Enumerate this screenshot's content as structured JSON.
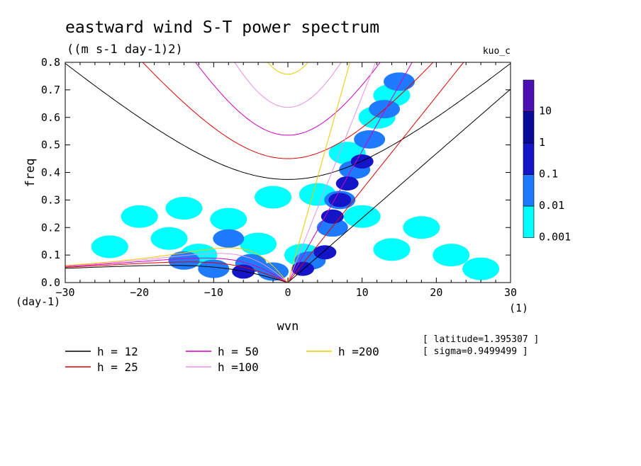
{
  "chart_data": {
    "type": "contour",
    "title": "eastward wind S-T power spectrum",
    "subtitle": "((m s-1 day-1)2)",
    "model_label": "kuo_c",
    "xlabel": "wvn",
    "ylabel": "freq",
    "x_unit": "(1)",
    "y_unit": "(day-1)",
    "xlim": [
      -30,
      30
    ],
    "ylim": [
      0,
      0.8
    ],
    "x_ticks": [
      -30,
      -20,
      -10,
      0,
      10,
      20,
      30
    ],
    "y_ticks": [
      0.0,
      0.1,
      0.2,
      0.3,
      0.4,
      0.5,
      0.6,
      0.7,
      0.8
    ],
    "colorbar": {
      "levels": [
        "0.001",
        "0.01",
        "0.1",
        "1",
        "10"
      ],
      "colors": [
        "#00ffff",
        "#1e7bff",
        "#1414c8",
        "#0a0a9a",
        "#4b0fb4"
      ]
    },
    "info": {
      "latitude": "[ latitude=1.395307 ]",
      "sigma": "[ sigma=0.9499499 ]"
    },
    "series": [
      {
        "name": "h = 12",
        "h": 12,
        "color": "#000000"
      },
      {
        "name": "h = 25",
        "h": 25,
        "color": "#e00000"
      },
      {
        "name": "h = 50",
        "h": 50,
        "color": "#d000c0"
      },
      {
        "name": "h =100",
        "h": 100,
        "color": "#e890e0"
      },
      {
        "name": "h =200",
        "h": 200,
        "color": "#f0c800"
      }
    ],
    "power_blobs": [
      {
        "wvn": -14,
        "freq": 0.27,
        "level": 0
      },
      {
        "wvn": -20,
        "freq": 0.24,
        "level": 0
      },
      {
        "wvn": -16,
        "freq": 0.16,
        "level": 0
      },
      {
        "wvn": -24,
        "freq": 0.13,
        "level": 0
      },
      {
        "wvn": -8,
        "freq": 0.23,
        "level": 0
      },
      {
        "wvn": -12,
        "freq": 0.1,
        "level": 0
      },
      {
        "wvn": -4,
        "freq": 0.14,
        "level": 0
      },
      {
        "wvn": 2,
        "freq": 0.1,
        "level": 0
      },
      {
        "wvn": 10,
        "freq": 0.24,
        "level": 0
      },
      {
        "wvn": 14,
        "freq": 0.12,
        "level": 0
      },
      {
        "wvn": 18,
        "freq": 0.2,
        "level": 0
      },
      {
        "wvn": 22,
        "freq": 0.1,
        "level": 0
      },
      {
        "wvn": 26,
        "freq": 0.05,
        "level": 0
      },
      {
        "wvn": 8,
        "freq": 0.47,
        "level": 0
      },
      {
        "wvn": 12,
        "freq": 0.6,
        "level": 0
      },
      {
        "wvn": 14,
        "freq": 0.68,
        "level": 0
      },
      {
        "wvn": -2,
        "freq": 0.31,
        "level": 0
      },
      {
        "wvn": 4,
        "freq": 0.32,
        "level": 0
      },
      {
        "wvn": -10,
        "freq": 0.05,
        "level": 1
      },
      {
        "wvn": -5,
        "freq": 0.07,
        "level": 1
      },
      {
        "wvn": -2,
        "freq": 0.04,
        "level": 1
      },
      {
        "wvn": 3,
        "freq": 0.08,
        "level": 1
      },
      {
        "wvn": 6,
        "freq": 0.2,
        "level": 1
      },
      {
        "wvn": 7,
        "freq": 0.3,
        "level": 1
      },
      {
        "wvn": 9,
        "freq": 0.41,
        "level": 1
      },
      {
        "wvn": 11,
        "freq": 0.52,
        "level": 1
      },
      {
        "wvn": 13,
        "freq": 0.63,
        "level": 1
      },
      {
        "wvn": 15,
        "freq": 0.73,
        "level": 1
      },
      {
        "wvn": -14,
        "freq": 0.08,
        "level": 1
      },
      {
        "wvn": -8,
        "freq": 0.16,
        "level": 1
      },
      {
        "wvn": 5,
        "freq": 0.11,
        "level": 2
      },
      {
        "wvn": 6,
        "freq": 0.24,
        "level": 2
      },
      {
        "wvn": 7,
        "freq": 0.3,
        "level": 2
      },
      {
        "wvn": 8,
        "freq": 0.36,
        "level": 2
      },
      {
        "wvn": 10,
        "freq": 0.44,
        "level": 2
      },
      {
        "wvn": -6,
        "freq": 0.04,
        "level": 2
      },
      {
        "wvn": 2,
        "freq": 0.05,
        "level": 2
      }
    ]
  }
}
